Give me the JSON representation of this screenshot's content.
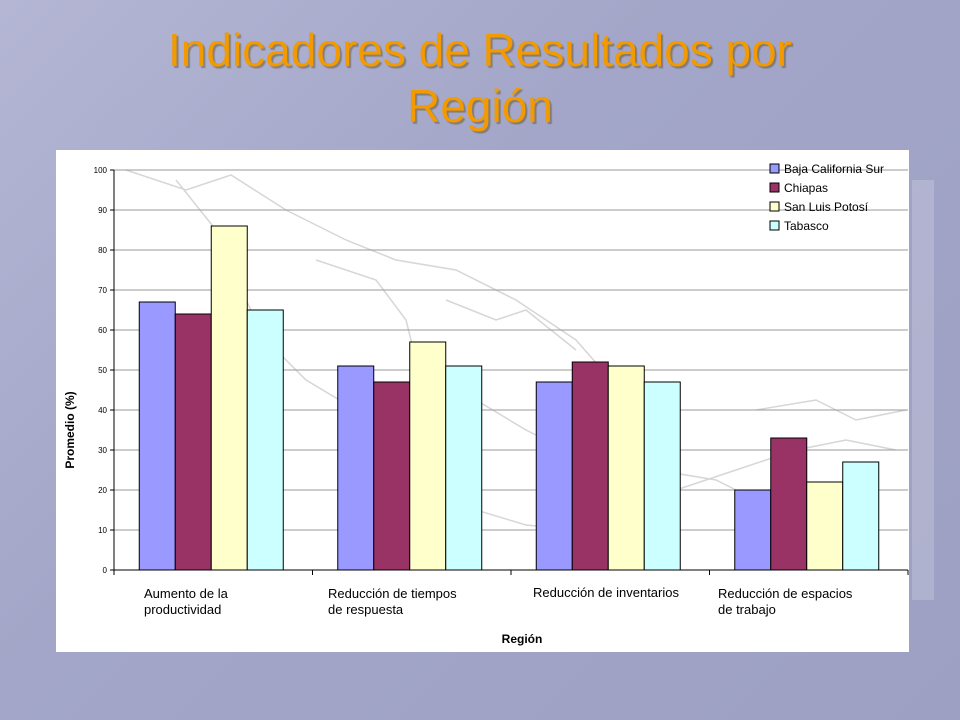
{
  "slide": {
    "title_line1": "Indicadores de Resultados por",
    "title_line2": "Región"
  },
  "chart_data": {
    "type": "bar",
    "title": "",
    "xlabel": "Región",
    "ylabel": "Promedio (%)",
    "ylim": [
      0,
      100
    ],
    "yticks": [
      0,
      10,
      20,
      30,
      40,
      50,
      60,
      70,
      80,
      90,
      100
    ],
    "grid": true,
    "legend_position": "top-right",
    "categories": [
      "Aumento de la productividad",
      "Reducción de tiempos de respuesta",
      "Reducción de inventarios",
      "Reducción de espacios de trabajo"
    ],
    "category_label_lines": [
      [
        "Aumento de la",
        "productividad"
      ],
      [
        "Reducción de tiempos",
        "de respuesta"
      ],
      [
        "Reducción de inventarios"
      ],
      [
        "Reducción de espacios",
        "de trabajo"
      ]
    ],
    "series": [
      {
        "name": "Baja California Sur",
        "color": "#9999ff",
        "values": [
          67,
          51,
          47,
          20
        ]
      },
      {
        "name": "Chiapas",
        "color": "#993366",
        "values": [
          64,
          47,
          52,
          33
        ]
      },
      {
        "name": "San Luis Potosí",
        "color": "#ffffcc",
        "values": [
          86,
          57,
          51,
          22
        ]
      },
      {
        "name": "Tabasco",
        "color": "#ccffff",
        "values": [
          65,
          51,
          47,
          27
        ]
      }
    ]
  }
}
